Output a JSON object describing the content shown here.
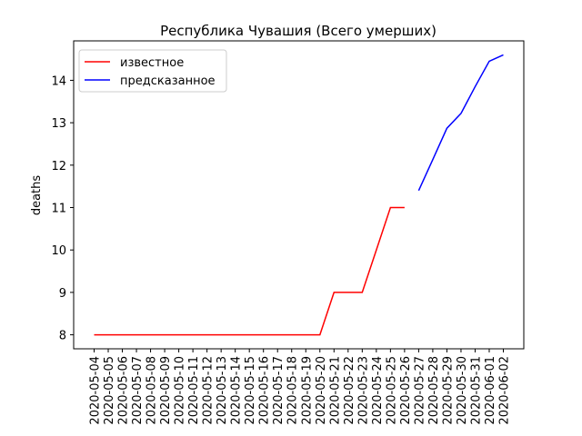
{
  "chart_data": {
    "type": "line",
    "title": "Республика Чувашия (Всего умерших)",
    "y_label": "deaths",
    "categories": [
      "2020-05-04",
      "2020-05-05",
      "2020-05-06",
      "2020-05-07",
      "2020-05-08",
      "2020-05-09",
      "2020-05-10",
      "2020-05-11",
      "2020-05-12",
      "2020-05-13",
      "2020-05-14",
      "2020-05-15",
      "2020-05-16",
      "2020-05-17",
      "2020-05-18",
      "2020-05-19",
      "2020-05-20",
      "2020-05-21",
      "2020-05-22",
      "2020-05-23",
      "2020-05-24",
      "2020-05-25",
      "2020-05-26",
      "2020-05-27",
      "2020-05-28",
      "2020-05-29",
      "2020-05-30",
      "2020-05-31",
      "2020-06-01",
      "2020-06-02"
    ],
    "series": [
      {
        "name": "известное",
        "color": "#ff0000",
        "values": [
          8,
          8,
          8,
          8,
          8,
          8,
          8,
          8,
          8,
          8,
          8,
          8,
          8,
          8,
          8,
          8,
          8,
          9,
          9,
          9,
          10,
          11,
          11,
          null,
          null,
          null,
          null,
          null,
          null,
          null
        ]
      },
      {
        "name": "предсказанное",
        "color": "#0000ff",
        "values": [
          null,
          null,
          null,
          null,
          null,
          null,
          null,
          null,
          null,
          null,
          null,
          null,
          null,
          null,
          null,
          null,
          null,
          null,
          null,
          null,
          null,
          null,
          null,
          11.4,
          12.13,
          12.87,
          13.22,
          13.85,
          14.45,
          14.6
        ]
      }
    ],
    "ylim": [
      7.67,
      14.93
    ],
    "yticks": [
      8,
      9,
      10,
      11,
      12,
      13,
      14
    ],
    "legend": "upper left",
    "grid": false
  }
}
